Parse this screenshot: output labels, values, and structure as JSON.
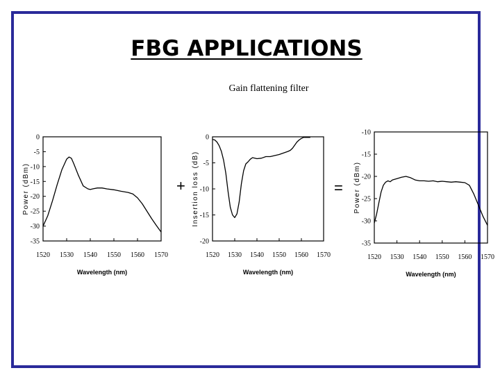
{
  "slide": {
    "title": "FBG APPLICATIONS",
    "subtitle": "Gain flattening filter",
    "plus": "+",
    "equals": "="
  },
  "colors": {
    "border": "#2a2a9a",
    "ink": "#000000"
  },
  "chart_data": [
    {
      "type": "line",
      "xlabel": "Wavelength (nm)",
      "ylabel": "Power (dBm)",
      "xlim": [
        1520,
        1570
      ],
      "ylim": [
        -35,
        0
      ],
      "xticks": [
        1520,
        1530,
        1540,
        1550,
        1560,
        1570
      ],
      "yticks": [
        0,
        -5,
        -10,
        -15,
        -20,
        -25,
        -30,
        -35
      ],
      "series": [
        {
          "x": [
            1520,
            1522,
            1524,
            1526,
            1528,
            1530,
            1531,
            1532,
            1533,
            1535,
            1537,
            1539,
            1540,
            1541,
            1543,
            1545,
            1547,
            1550,
            1553,
            1556,
            1558,
            1560,
            1562,
            1564,
            1566,
            1568,
            1570
          ],
          "y": [
            -30,
            -26.5,
            -21.5,
            -16,
            -11,
            -7.5,
            -6.8,
            -7.2,
            -9,
            -13,
            -16.5,
            -17.5,
            -17.7,
            -17.5,
            -17.2,
            -17.2,
            -17.5,
            -17.8,
            -18.3,
            -18.7,
            -19.2,
            -20.5,
            -22.5,
            -25,
            -27.5,
            -29.8,
            -32
          ]
        }
      ]
    },
    {
      "type": "line",
      "xlabel": "Wavelength (nm)",
      "ylabel": "Insertion loss (dB)",
      "xlim": [
        1520,
        1570
      ],
      "ylim": [
        -20,
        0
      ],
      "xticks": [
        1520,
        1530,
        1540,
        1550,
        1560,
        1570
      ],
      "yticks": [
        0,
        -5,
        -10,
        -15,
        -20
      ],
      "series": [
        {
          "x": [
            1520,
            1521,
            1522,
            1523,
            1524,
            1525,
            1526,
            1527,
            1528,
            1529,
            1530,
            1531,
            1532,
            1533,
            1534,
            1535,
            1536,
            1537,
            1538,
            1540,
            1542,
            1544,
            1546,
            1548,
            1550,
            1552,
            1554,
            1555,
            1556,
            1557,
            1558,
            1559,
            1560,
            1561,
            1562,
            1564
          ],
          "y": [
            -0.5,
            -0.6,
            -1,
            -1.7,
            -2.8,
            -4.5,
            -7,
            -10.5,
            -13.5,
            -15,
            -15.5,
            -14.8,
            -12.5,
            -9,
            -6.5,
            -5.2,
            -4.8,
            -4.3,
            -4,
            -4.2,
            -4.1,
            -3.8,
            -3.8,
            -3.6,
            -3.4,
            -3.1,
            -2.8,
            -2.6,
            -2.2,
            -1.6,
            -1,
            -0.6,
            -0.3,
            -0.1,
            -0.1,
            -0.1
          ]
        }
      ]
    },
    {
      "type": "line",
      "xlabel": "Wavelength (nm)",
      "ylabel": "Power (dBm)",
      "xlim": [
        1520,
        1570
      ],
      "ylim": [
        -35,
        -10
      ],
      "xticks": [
        1520,
        1530,
        1540,
        1550,
        1560,
        1570
      ],
      "yticks": [
        -10,
        -15,
        -20,
        -25,
        -30,
        -35
      ],
      "series": [
        {
          "x": [
            1520,
            1521,
            1522,
            1523,
            1524,
            1525,
            1526,
            1527,
            1528,
            1530,
            1532,
            1534,
            1536,
            1538,
            1540,
            1542,
            1544,
            1546,
            1548,
            1550,
            1552,
            1554,
            1556,
            1558,
            1560,
            1562,
            1564,
            1566,
            1568,
            1570
          ],
          "y": [
            -30.5,
            -28.5,
            -26,
            -23.5,
            -22,
            -21.3,
            -21,
            -21.2,
            -20.8,
            -20.5,
            -20.2,
            -20,
            -20.3,
            -20.8,
            -21,
            -21,
            -21.1,
            -21,
            -21.2,
            -21.1,
            -21.2,
            -21.3,
            -21.2,
            -21.3,
            -21.4,
            -22,
            -24,
            -26.5,
            -29,
            -31
          ]
        }
      ]
    }
  ]
}
